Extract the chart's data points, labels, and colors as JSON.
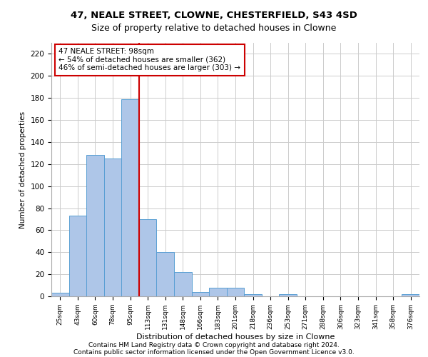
{
  "title_line1": "47, NEALE STREET, CLOWNE, CHESTERFIELD, S43 4SD",
  "title_line2": "Size of property relative to detached houses in Clowne",
  "xlabel": "Distribution of detached houses by size in Clowne",
  "ylabel": "Number of detached properties",
  "footnote1": "Contains HM Land Registry data © Crown copyright and database right 2024.",
  "footnote2": "Contains public sector information licensed under the Open Government Licence v3.0.",
  "categories": [
    "25sqm",
    "43sqm",
    "60sqm",
    "78sqm",
    "95sqm",
    "113sqm",
    "131sqm",
    "148sqm",
    "166sqm",
    "183sqm",
    "201sqm",
    "218sqm",
    "236sqm",
    "253sqm",
    "271sqm",
    "288sqm",
    "306sqm",
    "323sqm",
    "341sqm",
    "358sqm",
    "376sqm"
  ],
  "values": [
    3,
    73,
    128,
    125,
    179,
    70,
    40,
    22,
    4,
    8,
    8,
    2,
    0,
    2,
    0,
    0,
    0,
    0,
    0,
    0,
    2
  ],
  "bar_color": "#aec6e8",
  "bar_edge_color": "#5a9fd4",
  "vline_x": 4,
  "vline_color": "#cc0000",
  "annotation_text": "47 NEALE STREET: 98sqm\n← 54% of detached houses are smaller (362)\n46% of semi-detached houses are larger (303) →",
  "annotation_box_color": "#ffffff",
  "annotation_box_edge_color": "#cc0000",
  "ylim": [
    0,
    230
  ],
  "yticks": [
    0,
    20,
    40,
    60,
    80,
    100,
    120,
    140,
    160,
    180,
    200,
    220
  ],
  "background_color": "#ffffff",
  "grid_color": "#cccccc"
}
